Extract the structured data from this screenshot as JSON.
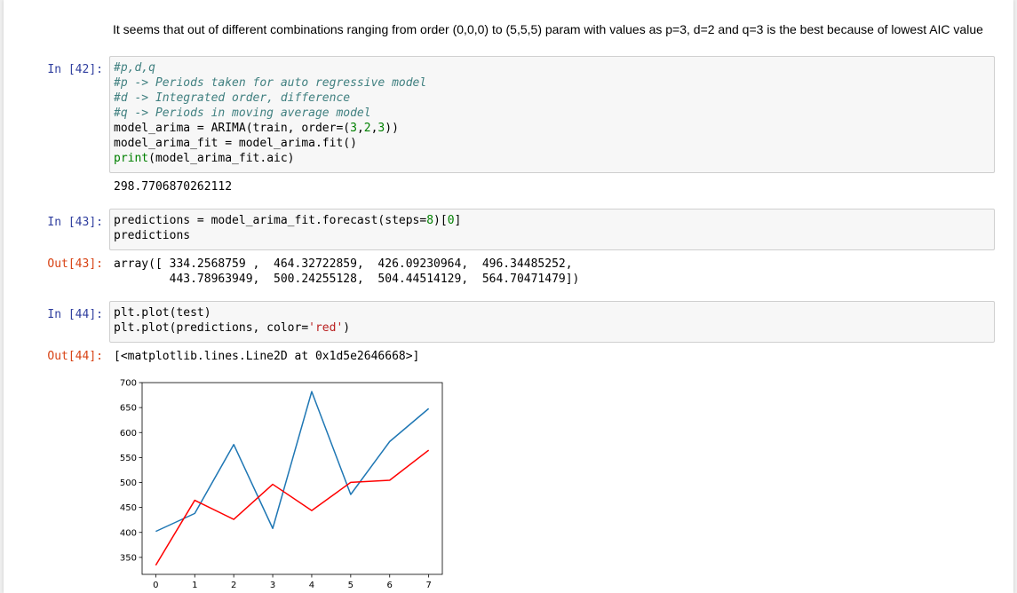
{
  "markdown": {
    "text": "It seems that out of different combinations ranging from order (0,0,0) to (5,5,5) param with values as p=3, d=2 and q=3 is the best because of lowest AIC value"
  },
  "cells": [
    {
      "in_prompt": "In [42]:",
      "lines": [
        [
          {
            "t": "#p,d,q",
            "c": "comment"
          }
        ],
        [
          {
            "t": "#p -> Periods taken for auto regressive model",
            "c": "comment"
          }
        ],
        [
          {
            "t": "#d -> Integrated order, difference",
            "c": "comment"
          }
        ],
        [
          {
            "t": "#q -> Periods in moving average model",
            "c": "comment"
          }
        ],
        [
          {
            "t": "model_arima = ARIMA(train, order=(",
            "c": ""
          },
          {
            "t": "3",
            "c": "number"
          },
          {
            "t": ",",
            "c": ""
          },
          {
            "t": "2",
            "c": "number"
          },
          {
            "t": ",",
            "c": ""
          },
          {
            "t": "3",
            "c": "number"
          },
          {
            "t": "))",
            "c": ""
          }
        ],
        [
          {
            "t": "model_arima_fit = model_arima.fit()",
            "c": ""
          }
        ],
        [
          {
            "t": "print",
            "c": "builtin"
          },
          {
            "t": "(model_arima_fit.aic)",
            "c": ""
          }
        ]
      ],
      "out_prompt": "",
      "output": "298.7706870262112"
    },
    {
      "in_prompt": "In [43]:",
      "lines": [
        [
          {
            "t": "predictions = model_arima_fit.forecast(steps=",
            "c": ""
          },
          {
            "t": "8",
            "c": "number"
          },
          {
            "t": ")[",
            "c": ""
          },
          {
            "t": "0",
            "c": "number"
          },
          {
            "t": "]",
            "c": ""
          }
        ],
        [
          {
            "t": "predictions",
            "c": ""
          }
        ]
      ],
      "out_prompt": "Out[43]:",
      "output": "array([ 334.2568759 ,  464.32722859,  426.09230964,  496.34485252,\n        443.78963949,  500.24255128,  504.44514129,  564.70471479])"
    },
    {
      "in_prompt": "In [44]:",
      "lines": [
        [
          {
            "t": "plt.plot(test)",
            "c": ""
          }
        ],
        [
          {
            "t": "plt.plot(predictions, color=",
            "c": ""
          },
          {
            "t": "'red'",
            "c": "string"
          },
          {
            "t": ")",
            "c": ""
          }
        ]
      ],
      "out_prompt": "Out[44]:",
      "output": "[<matplotlib.lines.Line2D at 0x1d5e2646668>]"
    }
  ],
  "chart_data": {
    "type": "line",
    "x": [
      0,
      1,
      2,
      3,
      4,
      5,
      6,
      7
    ],
    "series": [
      {
        "values": [
          402,
          438,
          576,
          408,
          682,
          476,
          582,
          648
        ],
        "color": "#1f77b4"
      },
      {
        "values": [
          334.2568759,
          464.32722859,
          426.09230964,
          496.34485252,
          443.78963949,
          500.24255128,
          504.44514129,
          564.70471479
        ],
        "color": "#ff0000"
      }
    ],
    "xticks": [
      0,
      1,
      2,
      3,
      4,
      5,
      6,
      7
    ],
    "yticks": [
      350,
      400,
      450,
      500,
      550,
      600,
      650,
      700
    ],
    "xlim": [
      -0.35,
      7.35
    ],
    "ylim": [
      316,
      700
    ],
    "grid": false,
    "title": "",
    "xlabel": "",
    "ylabel": ""
  }
}
